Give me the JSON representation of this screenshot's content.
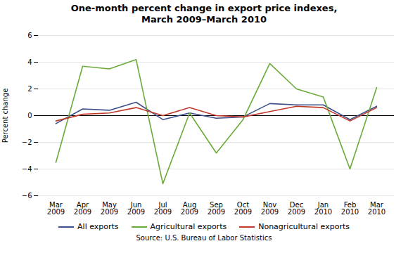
{
  "chart_data": {
    "type": "line",
    "title": "One-month percent change in export price indexes,\nMarch 2009–March 2010",
    "ylabel": "Percent change",
    "caption": "Source: U.S. Bureau of Labor Statistics",
    "categories": [
      "Mar\n2009",
      "Apr\n2009",
      "May\n2009",
      "Jun\n2009",
      "Jul\n2009",
      "Aug\n2009",
      "Sep\n2009",
      "Oct\n2009",
      "Nov\n2009",
      "Dec\n2009",
      "Jan\n2010",
      "Feb\n2010",
      "Mar\n2010"
    ],
    "series": [
      {
        "name": "All exports",
        "color": "#3c4f8a",
        "values": [
          -0.6,
          0.5,
          0.4,
          1.0,
          -0.3,
          0.2,
          -0.2,
          -0.1,
          0.9,
          0.8,
          0.8,
          -0.3,
          0.7
        ]
      },
      {
        "name": "Agricultural exports",
        "color": "#6aaa3a",
        "values": [
          -3.5,
          3.7,
          3.5,
          4.2,
          -5.1,
          0.2,
          -2.8,
          -0.3,
          3.9,
          2.0,
          1.4,
          -4.0,
          2.1
        ]
      },
      {
        "name": "Nonagricultural exports",
        "color": "#c0392b",
        "values": [
          -0.4,
          0.1,
          0.2,
          0.6,
          0.0,
          0.6,
          0.0,
          -0.1,
          0.3,
          0.7,
          0.6,
          -0.4,
          0.6
        ]
      }
    ],
    "ylim": [
      -6,
      6
    ],
    "yticks": [
      -6,
      -4,
      -2,
      0,
      2,
      4,
      6
    ],
    "grid": true,
    "legend": "bottom"
  }
}
